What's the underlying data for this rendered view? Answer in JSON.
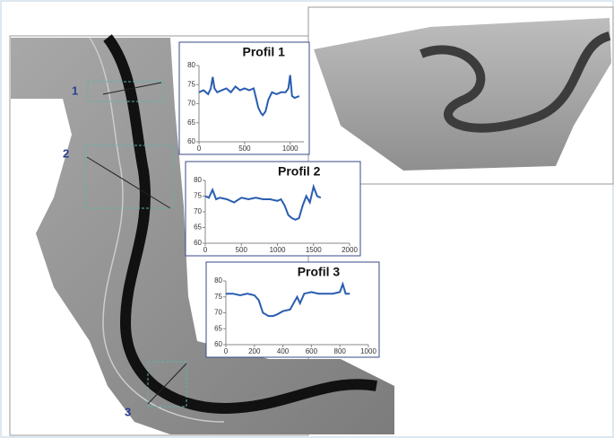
{
  "map": {
    "labels": [
      "1",
      "2",
      "3"
    ]
  },
  "chart_data": [
    {
      "type": "line",
      "title": "Profil 1",
      "x": [
        0,
        50,
        100,
        130,
        150,
        170,
        200,
        250,
        300,
        350,
        400,
        450,
        500,
        550,
        600,
        620,
        650,
        680,
        700,
        730,
        760,
        800,
        850,
        900,
        950,
        980,
        1000,
        1020,
        1050,
        1100
      ],
      "series": [
        {
          "color": "#2a5db0",
          "values": [
            73,
            73.5,
            72.5,
            74,
            77,
            74,
            73,
            73.5,
            74,
            73,
            74.5,
            73.5,
            74,
            73.5,
            74,
            72,
            69,
            67.5,
            67,
            68,
            71,
            73,
            72.5,
            73,
            73,
            74,
            77.5,
            72,
            71.5,
            72
          ]
        }
      ],
      "xlim": [
        0,
        1150
      ],
      "xticks": [
        0,
        500,
        1000
      ],
      "ylim": [
        60,
        80
      ],
      "yticks": [
        60,
        65,
        70,
        75,
        80
      ]
    },
    {
      "type": "line",
      "title": "Profil 2",
      "x": [
        0,
        50,
        100,
        150,
        200,
        300,
        400,
        500,
        600,
        700,
        800,
        900,
        1000,
        1050,
        1100,
        1150,
        1200,
        1250,
        1300,
        1350,
        1400,
        1450,
        1500,
        1550,
        1600
      ],
      "series": [
        {
          "color": "#2a5db0",
          "values": [
            75,
            74.5,
            77,
            74,
            74.5,
            74,
            73,
            74.5,
            74,
            74.5,
            74,
            74,
            73.5,
            74,
            72,
            69,
            68,
            67.5,
            68,
            72,
            75,
            73,
            78,
            75,
            74.5
          ]
        }
      ],
      "xlim": [
        0,
        2000
      ],
      "xticks": [
        0,
        500,
        1000,
        1500,
        2000
      ],
      "ylim": [
        60,
        80
      ],
      "yticks": [
        60,
        65,
        70,
        75,
        80
      ]
    },
    {
      "type": "line",
      "title": "Profil 3",
      "x": [
        0,
        50,
        100,
        150,
        200,
        230,
        260,
        300,
        330,
        360,
        400,
        450,
        500,
        520,
        550,
        600,
        650,
        700,
        750,
        800,
        820,
        840,
        870
      ],
      "series": [
        {
          "color": "#2a5db0",
          "values": [
            76,
            76,
            75.5,
            76,
            75.5,
            74,
            70,
            69,
            69,
            69.5,
            70.5,
            71,
            75,
            73,
            76,
            76.5,
            76,
            76,
            76,
            76.5,
            79,
            76,
            76
          ]
        }
      ],
      "xlim": [
        0,
        1000
      ],
      "xticks": [
        0,
        200,
        400,
        600,
        800,
        1000
      ],
      "ylim": [
        60,
        80
      ],
      "yticks": [
        60,
        65,
        70,
        75,
        80
      ]
    }
  ]
}
